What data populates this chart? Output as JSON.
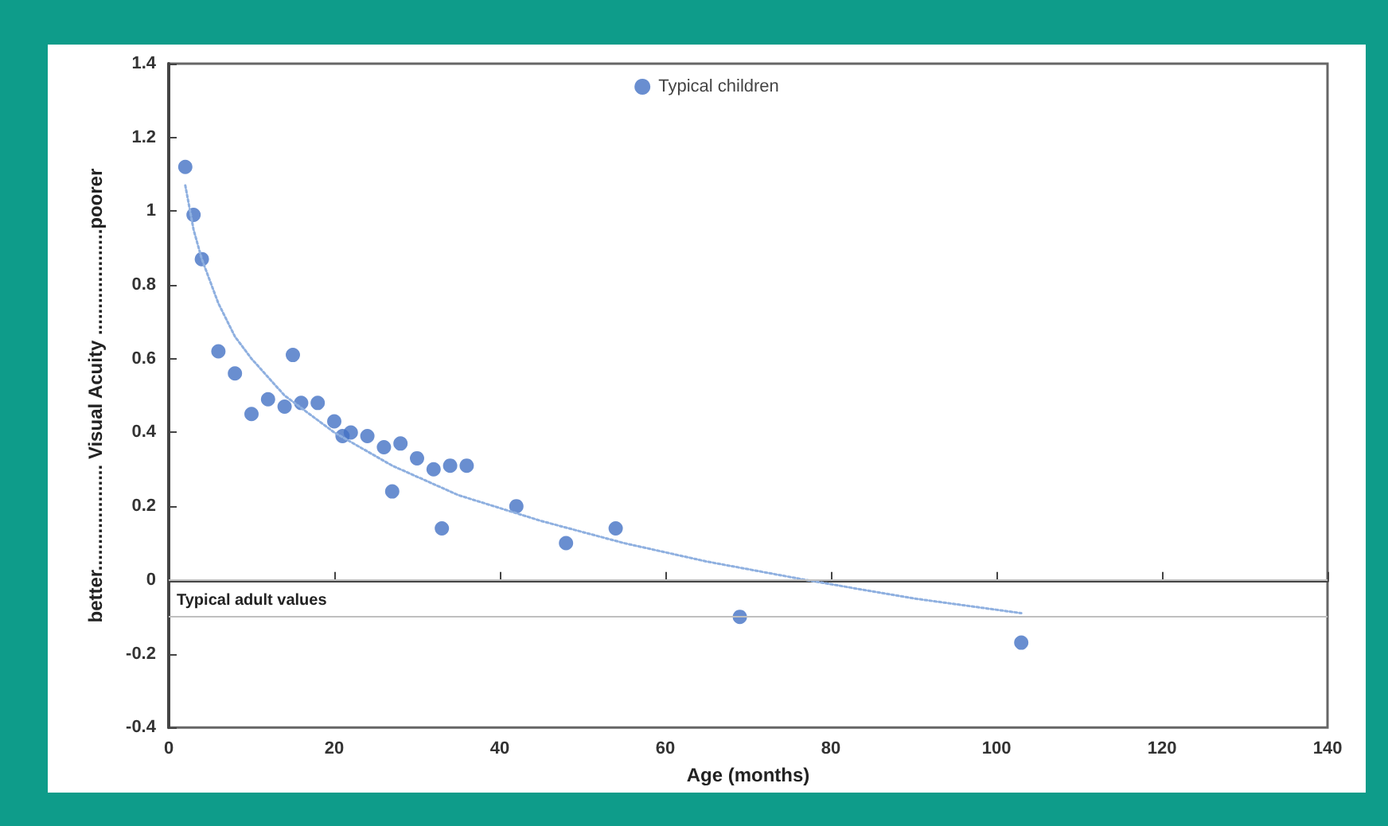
{
  "chart_data": {
    "type": "scatter",
    "xlabel": "Age (months)",
    "ylabel": "better.................... Visual Acuity ....................poorer",
    "xlim": [
      0,
      140
    ],
    "xticks": [
      0,
      20,
      40,
      60,
      80,
      100,
      120,
      140
    ],
    "ylim": [
      -0.4,
      1.4
    ],
    "yticks": [
      -0.4,
      -0.2,
      0,
      0.2,
      0.4,
      0.6,
      0.8,
      1,
      1.2,
      1.4
    ],
    "grid": false,
    "legend": "top",
    "marker": "circle",
    "series": [
      {
        "name": "Typical children",
        "color": "#4472c4",
        "x": [
          2,
          3,
          4,
          6,
          8,
          10,
          12,
          14,
          15,
          16,
          18,
          20,
          21,
          22,
          24,
          26,
          27,
          28,
          30,
          32,
          33,
          34,
          36,
          42,
          48,
          54,
          69,
          103
        ],
        "values": [
          1.12,
          0.99,
          0.87,
          0.62,
          0.56,
          0.45,
          0.49,
          0.47,
          0.61,
          0.48,
          0.48,
          0.43,
          0.39,
          0.4,
          0.39,
          0.36,
          0.24,
          0.37,
          0.33,
          0.3,
          0.14,
          0.31,
          0.31,
          0.2,
          0.1,
          0.14,
          -0.1,
          -0.17
        ]
      },
      {
        "type": "line",
        "color": "#8fb0e0",
        "line_style": "dotted",
        "marker": "none",
        "x": [
          2,
          3,
          4,
          6,
          8,
          10,
          14,
          20,
          27,
          35,
          45,
          55,
          65,
          77,
          90,
          103
        ],
        "values": [
          1.07,
          0.95,
          0.87,
          0.75,
          0.66,
          0.6,
          0.5,
          0.4,
          0.31,
          0.23,
          0.16,
          0.1,
          0.05,
          0.0,
          -0.05,
          -0.09
        ]
      }
    ],
    "ref_lines": [
      {
        "axis": "y",
        "value": 0,
        "color": "#bfbfbf"
      },
      {
        "axis": "y",
        "value": -0.1,
        "label": "Typical adult values",
        "color": "#bfbfbf"
      }
    ]
  }
}
